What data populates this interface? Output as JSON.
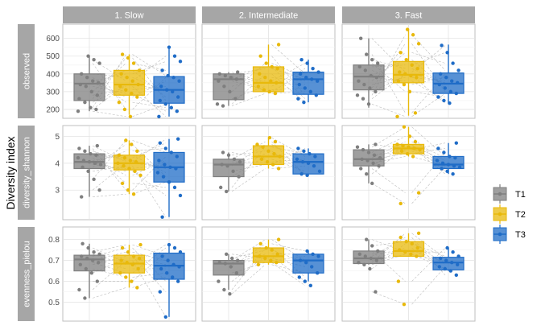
{
  "chart_data": {
    "type": "box",
    "ylabel": "Diversity index",
    "facet_cols": [
      "1. Slow",
      "2. Intermediate",
      "3. Fast"
    ],
    "categories": [
      "T1",
      "T2",
      "T3"
    ],
    "legend": {
      "position": "right",
      "entries": [
        {
          "label": "T1",
          "color": "#7f7f7f"
        },
        {
          "label": "T2",
          "color": "#e8b90b"
        },
        {
          "label": "T3",
          "color": "#1f6cc7"
        }
      ]
    },
    "grid": true,
    "rows": [
      {
        "label": "observed",
        "ylim": [
          150,
          680
        ],
        "ticks": [
          200,
          300,
          400,
          500,
          600
        ],
        "panels": [
          {
            "boxes": [
              {
                "min": 190,
                "q1": 250,
                "median": 345,
                "q3": 400,
                "max": 500,
                "points": [
                  190,
                  200,
                  210,
                  240,
                  260,
                  280,
                  300,
                  330,
                  340,
                  350,
                  360,
                  380,
                  400,
                  460,
                  480,
                  500
                ]
              },
              {
                "min": 170,
                "q1": 280,
                "median": 340,
                "q3": 420,
                "max": 510,
                "points": [
                  160,
                  200,
                  240,
                  270,
                  290,
                  310,
                  330,
                  340,
                  360,
                  380,
                  400,
                  420,
                  460,
                  490,
                  510
                ]
              },
              {
                "min": 160,
                "q1": 235,
                "median": 310,
                "q3": 385,
                "max": 555,
                "points": [
                  160,
                  190,
                  210,
                  230,
                  250,
                  270,
                  300,
                  310,
                  330,
                  360,
                  380,
                  390,
                  420,
                  470,
                  500,
                  550
                ]
              }
            ]
          },
          {
            "boxes": [
              {
                "min": 220,
                "q1": 255,
                "median": 370,
                "q3": 400,
                "max": 410,
                "points": [
                  220,
                  230,
                  260,
                  300,
                  330,
                  360,
                  370,
                  380,
                  390,
                  400,
                  410
                ]
              },
              {
                "min": 290,
                "q1": 300,
                "median": 350,
                "q3": 440,
                "max": 565,
                "points": [
                  290,
                  300,
                  310,
                  330,
                  350,
                  360,
                  380,
                  400,
                  430,
                  440,
                  460,
                  500,
                  565
                ]
              },
              {
                "min": 240,
                "q1": 285,
                "median": 370,
                "q3": 410,
                "max": 480,
                "points": [
                  240,
                  260,
                  280,
                  300,
                  320,
                  340,
                  360,
                  370,
                  380,
                  400,
                  410,
                  430,
                  460,
                  480
                ]
              }
            ]
          },
          {
            "boxes": [
              {
                "min": 210,
                "q1": 310,
                "median": 385,
                "q3": 450,
                "max": 600,
                "points": [
                  230,
                  260,
                  280,
                  300,
                  320,
                  340,
                  360,
                  380,
                  390,
                  420,
                  440,
                  460,
                  480,
                  510,
                  600
                ]
              },
              {
                "min": 165,
                "q1": 350,
                "median": 395,
                "q3": 470,
                "max": 655,
                "points": [
                  160,
                  180,
                  300,
                  340,
                  360,
                  380,
                  390,
                  400,
                  410,
                  430,
                  450,
                  480,
                  520,
                  570,
                  620,
                  650
                ]
              },
              {
                "min": 235,
                "q1": 290,
                "median": 345,
                "q3": 405,
                "max": 565,
                "points": [
                  235,
                  250,
                  270,
                  290,
                  300,
                  320,
                  340,
                  350,
                  360,
                  380,
                  400,
                  420,
                  460,
                  520,
                  560
                ]
              }
            ]
          }
        ]
      },
      {
        "label": "diversity_shannon",
        "ylim": [
          1.9,
          5.4
        ],
        "ticks": [
          3,
          4,
          5
        ],
        "panels": [
          {
            "boxes": [
              {
                "min": 2.75,
                "q1": 3.8,
                "median": 4.05,
                "q3": 4.35,
                "max": 4.65,
                "points": [
                  2.75,
                  3.0,
                  3.4,
                  3.7,
                  3.85,
                  3.95,
                  4.0,
                  4.05,
                  4.1,
                  4.2,
                  4.3,
                  4.35,
                  4.45,
                  4.55,
                  4.65
                ]
              },
              {
                "min": 2.85,
                "q1": 3.75,
                "median": 4.0,
                "q3": 4.3,
                "max": 4.85,
                "points": [
                  2.85,
                  3.0,
                  3.25,
                  3.55,
                  3.7,
                  3.8,
                  3.9,
                  4.0,
                  4.05,
                  4.1,
                  4.2,
                  4.3,
                  4.45,
                  4.7,
                  4.85
                ]
              },
              {
                "min": 2.0,
                "q1": 3.3,
                "median": 3.85,
                "q3": 4.4,
                "max": 4.9,
                "points": [
                  2.0,
                  2.8,
                  3.1,
                  3.3,
                  3.5,
                  3.65,
                  3.8,
                  3.85,
                  3.95,
                  4.1,
                  4.25,
                  4.4,
                  4.55,
                  4.75,
                  4.9
                ]
              }
            ]
          },
          {
            "boxes": [
              {
                "min": 2.95,
                "q1": 3.5,
                "median": 3.95,
                "q3": 4.15,
                "max": 4.4,
                "points": [
                  2.95,
                  3.1,
                  3.5,
                  3.7,
                  3.9,
                  3.95,
                  4.05,
                  4.15,
                  4.3,
                  4.4
                ]
              },
              {
                "min": 3.8,
                "q1": 3.95,
                "median": 4.25,
                "q3": 4.65,
                "max": 4.95,
                "points": [
                  3.8,
                  3.95,
                  4.05,
                  4.15,
                  4.25,
                  4.35,
                  4.45,
                  4.6,
                  4.7,
                  4.8,
                  4.95
                ]
              },
              {
                "min": 3.55,
                "q1": 3.6,
                "median": 4.05,
                "q3": 4.35,
                "max": 4.55,
                "points": [
                  3.55,
                  3.6,
                  3.7,
                  3.9,
                  4.0,
                  4.05,
                  4.15,
                  4.25,
                  4.35,
                  4.45,
                  4.55
                ]
              }
            ]
          },
          {
            "boxes": [
              {
                "min": 3.25,
                "q1": 3.9,
                "median": 4.15,
                "q3": 4.5,
                "max": 4.7,
                "points": [
                  3.25,
                  3.6,
                  3.8,
                  3.9,
                  4.0,
                  4.1,
                  4.15,
                  4.2,
                  4.3,
                  4.4,
                  4.5,
                  4.6,
                  4.7
                ]
              },
              {
                "min": 4.25,
                "q1": 4.35,
                "median": 4.55,
                "q3": 4.7,
                "max": 5.35,
                "points": [
                  2.5,
                  2.9,
                  4.25,
                  4.35,
                  4.45,
                  4.5,
                  4.55,
                  4.6,
                  4.65,
                  4.7,
                  4.8,
                  5.0,
                  5.35
                ]
              },
              {
                "min": 3.6,
                "q1": 3.8,
                "median": 3.95,
                "q3": 4.25,
                "max": 4.75,
                "points": [
                  3.6,
                  3.7,
                  3.8,
                  3.85,
                  3.9,
                  3.95,
                  4.0,
                  4.1,
                  4.2,
                  4.25,
                  4.4,
                  4.55,
                  4.75
                ]
              }
            ]
          }
        ]
      },
      {
        "label": "evenness_pielou",
        "ylim": [
          0.41,
          0.86
        ],
        "ticks": [
          0.5,
          0.6,
          0.7,
          0.8
        ],
        "panels": [
          {
            "boxes": [
              {
                "min": 0.52,
                "q1": 0.65,
                "median": 0.705,
                "q3": 0.725,
                "max": 0.78,
                "points": [
                  0.52,
                  0.56,
                  0.6,
                  0.64,
                  0.66,
                  0.68,
                  0.69,
                  0.7,
                  0.71,
                  0.72,
                  0.73,
                  0.74,
                  0.76,
                  0.78
                ]
              },
              {
                "min": 0.57,
                "q1": 0.64,
                "median": 0.685,
                "q3": 0.725,
                "max": 0.775,
                "points": [
                  0.57,
                  0.6,
                  0.62,
                  0.64,
                  0.66,
                  0.68,
                  0.69,
                  0.7,
                  0.71,
                  0.72,
                  0.74,
                  0.76,
                  0.775
                ]
              },
              {
                "min": 0.43,
                "q1": 0.61,
                "median": 0.675,
                "q3": 0.735,
                "max": 0.775,
                "points": [
                  0.43,
                  0.55,
                  0.6,
                  0.62,
                  0.64,
                  0.66,
                  0.67,
                  0.68,
                  0.7,
                  0.72,
                  0.74,
                  0.76,
                  0.775
                ]
              }
            ]
          },
          {
            "boxes": [
              {
                "min": 0.56,
                "q1": 0.63,
                "median": 0.685,
                "q3": 0.7,
                "max": 0.73,
                "points": [
                  0.54,
                  0.56,
                  0.6,
                  0.64,
                  0.67,
                  0.685,
                  0.69,
                  0.7,
                  0.71,
                  0.73
                ]
              },
              {
                "min": 0.68,
                "q1": 0.69,
                "median": 0.72,
                "q3": 0.76,
                "max": 0.8,
                "points": [
                  0.68,
                  0.69,
                  0.7,
                  0.71,
                  0.72,
                  0.73,
                  0.75,
                  0.76,
                  0.78,
                  0.8
                ]
              },
              {
                "min": 0.6,
                "q1": 0.64,
                "median": 0.7,
                "q3": 0.73,
                "max": 0.745,
                "points": [
                  0.58,
                  0.6,
                  0.62,
                  0.64,
                  0.67,
                  0.69,
                  0.7,
                  0.72,
                  0.73,
                  0.745
                ]
              }
            ]
          },
          {
            "boxes": [
              {
                "min": 0.68,
                "q1": 0.685,
                "median": 0.71,
                "q3": 0.745,
                "max": 0.8,
                "points": [
                  0.55,
                  0.66,
                  0.68,
                  0.69,
                  0.7,
                  0.71,
                  0.72,
                  0.73,
                  0.745,
                  0.77,
                  0.8
                ]
              },
              {
                "min": 0.72,
                "q1": 0.72,
                "median": 0.745,
                "q3": 0.79,
                "max": 0.83,
                "points": [
                  0.49,
                  0.6,
                  0.72,
                  0.73,
                  0.74,
                  0.75,
                  0.76,
                  0.78,
                  0.79,
                  0.81,
                  0.83
                ]
              },
              {
                "min": 0.65,
                "q1": 0.655,
                "median": 0.69,
                "q3": 0.715,
                "max": 0.76,
                "points": [
                  0.63,
                  0.65,
                  0.66,
                  0.67,
                  0.68,
                  0.69,
                  0.7,
                  0.71,
                  0.72,
                  0.74,
                  0.76
                ]
              }
            ]
          }
        ]
      }
    ]
  }
}
